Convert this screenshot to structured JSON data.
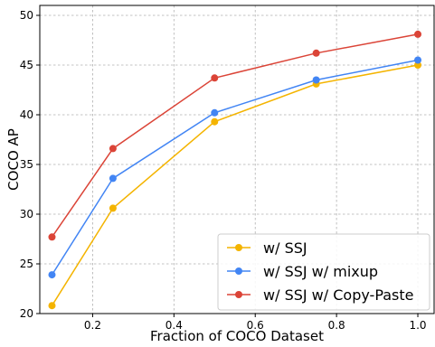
{
  "chart_data": {
    "type": "line",
    "xlabel": "Fraction of COCO Dataset",
    "ylabel": "COCO AP",
    "xlim": [
      0.07,
      1.04
    ],
    "ylim": [
      20,
      51
    ],
    "x_ticks": [
      0.2,
      0.4,
      0.6,
      0.8,
      1.0
    ],
    "x_tick_labels": [
      "0.2",
      "0.4",
      "0.6",
      "0.8",
      "1.0"
    ],
    "y_ticks": [
      20,
      25,
      30,
      35,
      40,
      45,
      50
    ],
    "y_tick_labels": [
      "20",
      "25",
      "30",
      "35",
      "40",
      "45",
      "50"
    ],
    "grid": true,
    "legend_position": "lower-right",
    "x": [
      0.1,
      0.25,
      0.5,
      0.75,
      1.0
    ],
    "series": [
      {
        "name": "w/ SSJ",
        "color": "#f4b400",
        "values": [
          20.8,
          30.6,
          39.3,
          43.1,
          45.0
        ]
      },
      {
        "name": "w/ SSJ w/ mixup",
        "color": "#4285f4",
        "values": [
          23.9,
          33.6,
          40.2,
          43.5,
          45.5
        ]
      },
      {
        "name": "w/ SSJ w/ Copy-Paste",
        "color": "#db4437",
        "values": [
          27.7,
          36.6,
          43.7,
          46.2,
          48.1
        ]
      }
    ]
  }
}
